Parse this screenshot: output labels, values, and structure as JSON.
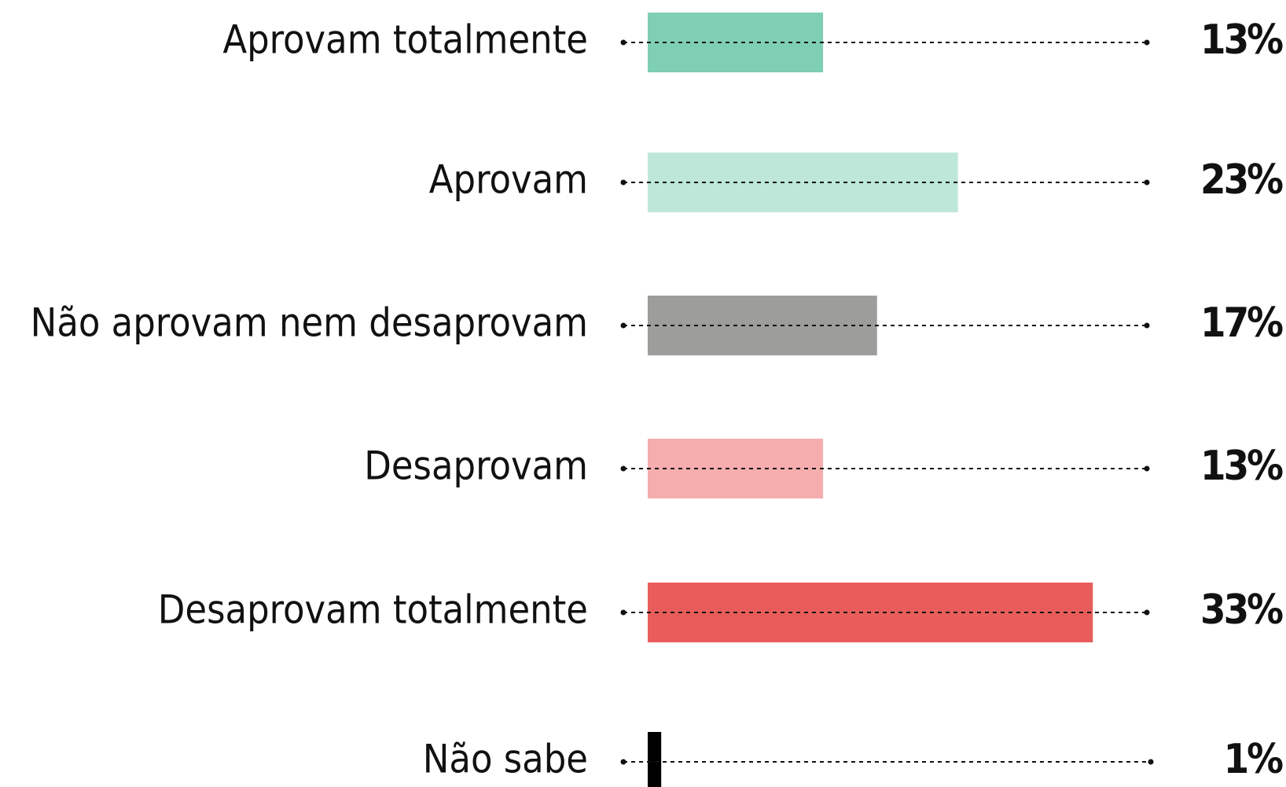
{
  "chart_data": {
    "type": "bar",
    "orientation": "horizontal",
    "categories": [
      "Aprovam totalmente",
      "Aprovam",
      "Não aprovam nem desaprovam",
      "Desaprovam",
      "Desaprovam totalmente",
      "Não sabe"
    ],
    "values": [
      13,
      23,
      17,
      13,
      33,
      1
    ],
    "value_labels": [
      "13%",
      "23%",
      "17%",
      "13%",
      "33%",
      "1%"
    ],
    "colors": [
      "#7ecfb4",
      "#bee7da",
      "#9d9d9c",
      "#f5adad",
      "#e85d5b",
      "#000000"
    ]
  }
}
